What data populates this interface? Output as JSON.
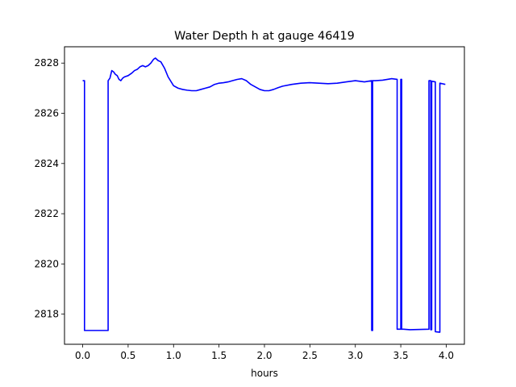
{
  "chart_data": {
    "type": "line",
    "title": "Water Depth h at gauge 46419",
    "xlabel": "hours",
    "ylabel": "",
    "xlim": [
      -0.2,
      4.2
    ],
    "ylim": [
      2816.8,
      2828.65
    ],
    "xticks": [
      0.0,
      0.5,
      1.0,
      1.5,
      2.0,
      2.5,
      3.0,
      3.5,
      4.0
    ],
    "xtick_labels": [
      "0.0",
      "0.5",
      "1.0",
      "1.5",
      "2.0",
      "2.5",
      "3.0",
      "3.5",
      "4.0"
    ],
    "yticks": [
      2818,
      2820,
      2822,
      2824,
      2826,
      2828
    ],
    "ytick_labels": [
      "2818",
      "2820",
      "2822",
      "2824",
      "2826",
      "2828"
    ],
    "grid": false,
    "series": [
      {
        "color": "#0000ff",
        "x": [
          0.0,
          0.02,
          0.02,
          0.28,
          0.28,
          0.3,
          0.32,
          0.34,
          0.36,
          0.38,
          0.4,
          0.42,
          0.44,
          0.46,
          0.5,
          0.54,
          0.57,
          0.6,
          0.63,
          0.66,
          0.69,
          0.72,
          0.75,
          0.78,
          0.8,
          0.83,
          0.86,
          0.9,
          0.94,
          1.0,
          1.05,
          1.1,
          1.15,
          1.2,
          1.25,
          1.3,
          1.35,
          1.4,
          1.45,
          1.5,
          1.55,
          1.6,
          1.65,
          1.7,
          1.75,
          1.8,
          1.85,
          1.9,
          1.95,
          2.0,
          2.05,
          2.1,
          2.15,
          2.2,
          2.3,
          2.4,
          2.5,
          2.6,
          2.7,
          2.8,
          2.9,
          3.0,
          3.1,
          3.18,
          3.18,
          3.19,
          3.19,
          3.22,
          3.3,
          3.4,
          3.46,
          3.46,
          3.5,
          3.5,
          3.51,
          3.51,
          3.53,
          3.53,
          3.6,
          3.81,
          3.81,
          3.83,
          3.83,
          3.84,
          3.84,
          3.88,
          3.88,
          3.93,
          3.93,
          3.99
        ],
        "y": [
          2827.3,
          2827.3,
          2817.35,
          2817.35,
          2827.3,
          2827.4,
          2827.7,
          2827.65,
          2827.55,
          2827.5,
          2827.35,
          2827.3,
          2827.4,
          2827.45,
          2827.5,
          2827.6,
          2827.7,
          2827.75,
          2827.85,
          2827.9,
          2827.85,
          2827.9,
          2828.0,
          2828.15,
          2828.2,
          2828.1,
          2828.05,
          2827.8,
          2827.45,
          2827.1,
          2827.0,
          2826.95,
          2826.92,
          2826.9,
          2826.9,
          2826.95,
          2827.0,
          2827.05,
          2827.15,
          2827.2,
          2827.22,
          2827.25,
          2827.3,
          2827.35,
          2827.38,
          2827.3,
          2827.15,
          2827.05,
          2826.95,
          2826.9,
          2826.9,
          2826.95,
          2827.02,
          2827.08,
          2827.15,
          2827.2,
          2827.22,
          2827.2,
          2827.18,
          2827.2,
          2827.25,
          2827.3,
          2827.25,
          2827.3,
          2817.35,
          2817.35,
          2827.3,
          2827.3,
          2827.32,
          2827.38,
          2827.35,
          2817.4,
          2817.4,
          2827.35,
          2827.35,
          2817.4,
          2817.4,
          2817.4,
          2817.38,
          2817.4,
          2827.3,
          2827.3,
          2817.38,
          2817.38,
          2827.28,
          2827.25,
          2817.3,
          2817.28,
          2827.2,
          2827.15
        ]
      }
    ]
  }
}
